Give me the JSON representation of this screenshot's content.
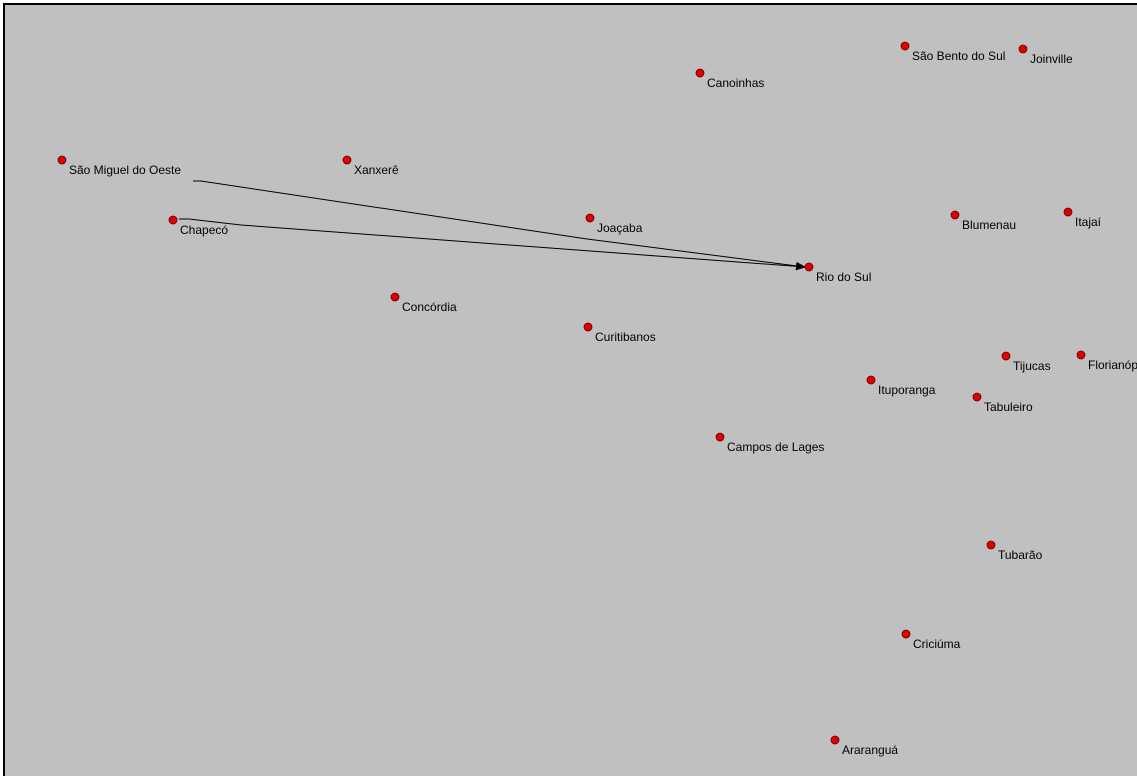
{
  "map": {
    "background": "#c0c0c0",
    "node_color": "#e00000",
    "edge_color": "#000000",
    "cities": [
      {
        "id": "sao-miguel-do-oeste",
        "label": "São Miguel do Oeste"
      },
      {
        "id": "xanxere",
        "label": "Xanxerê"
      },
      {
        "id": "chapeco",
        "label": "Chapecó"
      },
      {
        "id": "concordia",
        "label": "Concórdia"
      },
      {
        "id": "joacaba",
        "label": "Joaçaba"
      },
      {
        "id": "curitibanos",
        "label": "Curitibanos"
      },
      {
        "id": "canoinhas",
        "label": "Canoinhas"
      },
      {
        "id": "sao-bento-do-sul",
        "label": "São Bento do Sul"
      },
      {
        "id": "joinville",
        "label": "Joinville"
      },
      {
        "id": "blumenau",
        "label": "Blumenau"
      },
      {
        "id": "itajai",
        "label": "Itajaí"
      },
      {
        "id": "rio-do-sul",
        "label": "Rio do Sul"
      },
      {
        "id": "tijucas",
        "label": "Tijucas"
      },
      {
        "id": "florianopolis",
        "label": "Florianópolis"
      },
      {
        "id": "ituporanga",
        "label": "Ituporanga"
      },
      {
        "id": "tabuleiro",
        "label": "Tabuleiro"
      },
      {
        "id": "campos-de-lages",
        "label": "Campos de Lages"
      },
      {
        "id": "tubarao",
        "label": "Tubarão"
      },
      {
        "id": "criciuma",
        "label": "Criciúma"
      },
      {
        "id": "ararangua",
        "label": "Araranguá"
      }
    ],
    "edges": [
      {
        "from": "sao-miguel-do-oeste",
        "to": "rio-do-sul",
        "directed": true
      },
      {
        "from": "chapeco",
        "to": "rio-do-sul",
        "directed": true
      }
    ]
  }
}
